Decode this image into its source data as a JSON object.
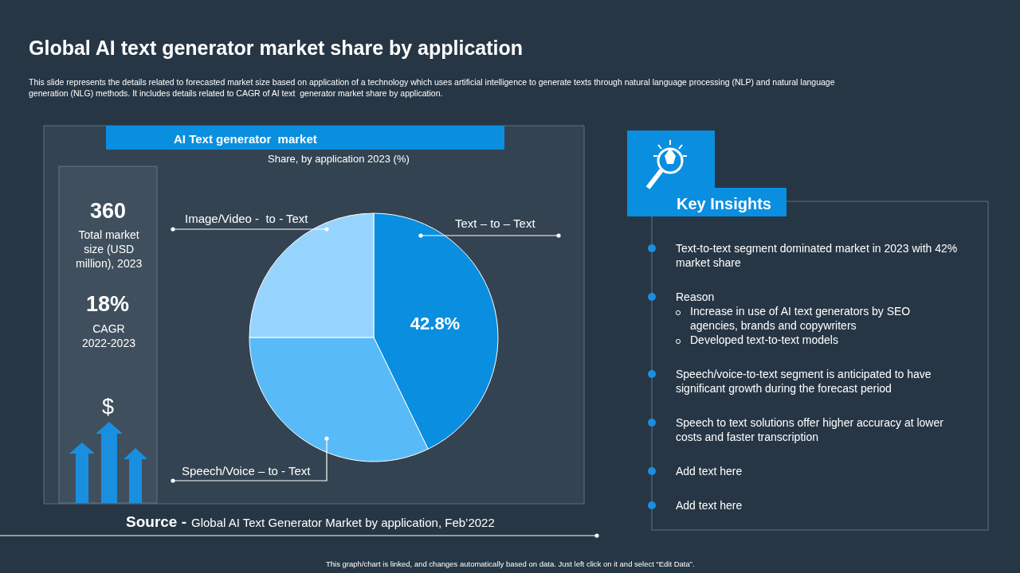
{
  "chart_data": {
    "type": "pie",
    "title": "Global AI text generator market share by application",
    "subtitle": "This slide represents the details related to forecasted market size based on application of a technology which uses artificial intelligence to generate texts through natural language processing (NLP) and natural language generation (NLG) methods. It includes details related to CAGR of AI text  generator market share by application.",
    "categories": [
      "Text – to – Text",
      "Speech/Voice – to - Text",
      "Image/Video -  to - Text"
    ],
    "values": [
      42.8,
      32.2,
      25.0
    ],
    "colors": [
      "#0a8ee0",
      "#58bbf8",
      "#97d4fd"
    ],
    "value_labels": [
      "42.8%",
      null,
      null
    ],
    "annotations": [
      "AI Text generator  market",
      "Share, by application 2023 (%)",
      "360",
      "Total market size (USD million), 2023",
      "18%",
      "CAGR 2022-2023",
      "$",
      "Key Insights",
      "Text-to-text segment dominated market in 2023 with 42% market share",
      "Reason",
      "Increase in use of AI text generators by SEO agencies, brands and copywriters",
      "Developed text-to-text models",
      "Speech/voice-to-text segment is anticipated to have significant growth during the forecast period",
      "Speech to text solutions offer higher accuracy at lower costs and faster transcription",
      "Add text here",
      "Add text here",
      "Source -",
      "Global AI Text Generator Market by application, Feb’2022",
      "This graph/chart is linked, and changes automatically based on data. Just left click on it and select “Edit Data”."
    ]
  }
}
